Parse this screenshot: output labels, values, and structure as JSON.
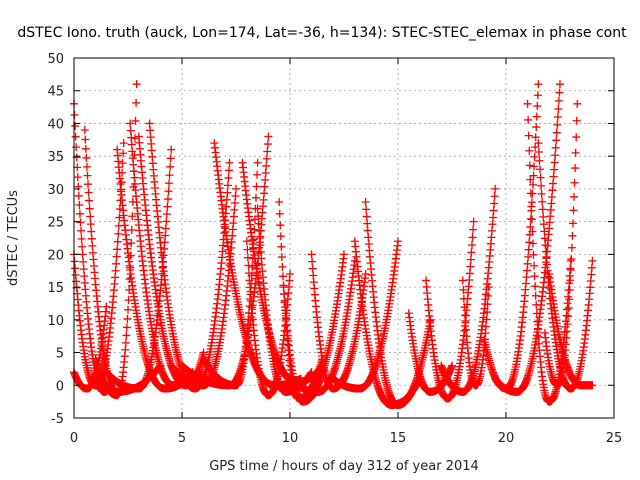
{
  "chart_data": {
    "type": "scatter",
    "title": "dSTEC Iono. truth (auck, Lon=174, Lat=-36, h=134): STEC-STEC_elemax in phase cont",
    "xlabel": "GPS time / hours of day 312 of year 2014",
    "ylabel": "dSTEC  / TECUs",
    "xlim": [
      0,
      25
    ],
    "ylim": [
      -5,
      50
    ],
    "xticks": [
      "0",
      "5",
      "10",
      "15",
      "20",
      "25"
    ],
    "yticks": [
      "-5",
      "0",
      "5",
      "10",
      "15",
      "20",
      "25",
      "30",
      "35",
      "40",
      "45",
      "50"
    ],
    "grid": true,
    "marker": "+",
    "color": "#ff0000",
    "passes": [
      {
        "start": 0.0,
        "end": 1.8,
        "min_t": 1.4,
        "min_v": -1.0,
        "left": 43.0,
        "right": 1.0
      },
      {
        "start": 0.0,
        "end": 2.3,
        "min_t": 1.0,
        "min_v": 0.0,
        "left": 20.0,
        "right": 37.0
      },
      {
        "start": 0.0,
        "end": 1.5,
        "min_t": 0.6,
        "min_v": -0.5,
        "left": 2.0,
        "right": 12.0
      },
      {
        "start": 0.5,
        "end": 4.0,
        "min_t": 2.0,
        "min_v": -1.0,
        "left": 39.0,
        "right": 3.0
      },
      {
        "start": 1.0,
        "end": 2.9,
        "min_t": 2.0,
        "min_v": -1.5,
        "left": 4.0,
        "right": 46.0
      },
      {
        "start": 1.5,
        "end": 4.5,
        "min_t": 3.0,
        "min_v": -0.5,
        "left": 2.0,
        "right": 36.0
      },
      {
        "start": 2.0,
        "end": 5.5,
        "min_t": 4.2,
        "min_v": -0.5,
        "left": 36.0,
        "right": 2.0
      },
      {
        "start": 2.6,
        "end": 5.8,
        "min_t": 4.6,
        "min_v": 0.0,
        "left": 40.0,
        "right": 2.0
      },
      {
        "start": 3.0,
        "end": 6.0,
        "min_t": 5.2,
        "min_v": 0.0,
        "left": 38.0,
        "right": 5.0
      },
      {
        "start": 3.5,
        "end": 7.2,
        "min_t": 5.6,
        "min_v": -0.5,
        "left": 40.0,
        "right": 34.0
      },
      {
        "start": 4.5,
        "end": 7.5,
        "min_t": 6.0,
        "min_v": 0.0,
        "left": 3.0,
        "right": 30.0
      },
      {
        "start": 5.0,
        "end": 9.0,
        "min_t": 7.2,
        "min_v": 0.0,
        "left": 3.0,
        "right": 38.0
      },
      {
        "start": 6.0,
        "end": 8.5,
        "min_t": 7.5,
        "min_v": 0.0,
        "left": 4.0,
        "right": 34.0
      },
      {
        "start": 6.5,
        "end": 10.5,
        "min_t": 9.3,
        "min_v": 0.0,
        "left": 37.0,
        "right": 1.0
      },
      {
        "start": 7.8,
        "end": 11.5,
        "min_t": 10.3,
        "min_v": 0.5,
        "left": 34.0,
        "right": 3.0
      },
      {
        "start": 8.0,
        "end": 10.0,
        "min_t": 9.0,
        "min_v": -1.5,
        "left": 22.0,
        "right": 17.0
      },
      {
        "start": 8.5,
        "end": 11.0,
        "min_t": 9.8,
        "min_v": -1.0,
        "left": 27.0,
        "right": 2.0
      },
      {
        "start": 9.5,
        "end": 11.5,
        "min_t": 10.4,
        "min_v": -2.0,
        "left": 28.0,
        "right": 4.0
      },
      {
        "start": 9.7,
        "end": 12.5,
        "min_t": 10.6,
        "min_v": -2.5,
        "left": 15.0,
        "right": 20.0
      },
      {
        "start": 10.0,
        "end": 13.0,
        "min_t": 11.3,
        "min_v": -1.0,
        "left": 1.0,
        "right": 19.0
      },
      {
        "start": 11.0,
        "end": 13.5,
        "min_t": 12.0,
        "min_v": -0.5,
        "left": 20.0,
        "right": 17.0
      },
      {
        "start": 12.0,
        "end": 15.0,
        "min_t": 13.2,
        "min_v": -0.5,
        "left": 1.0,
        "right": 22.0
      },
      {
        "start": 13.0,
        "end": 16.0,
        "min_t": 14.7,
        "min_v": -3.0,
        "left": 22.0,
        "right": 1.0
      },
      {
        "start": 13.5,
        "end": 16.5,
        "min_t": 15.0,
        "min_v": -3.0,
        "left": 28.0,
        "right": 10.0
      },
      {
        "start": 15.5,
        "end": 17.5,
        "min_t": 16.5,
        "min_v": -1.0,
        "left": 11.0,
        "right": 3.0
      },
      {
        "start": 16.3,
        "end": 18.5,
        "min_t": 17.3,
        "min_v": -2.0,
        "left": 16.0,
        "right": 25.0
      },
      {
        "start": 17.0,
        "end": 19.5,
        "min_t": 18.0,
        "min_v": -1.0,
        "left": 3.0,
        "right": 30.0
      },
      {
        "start": 18.0,
        "end": 19.2,
        "min_t": 18.6,
        "min_v": 0.0,
        "left": 16.0,
        "right": 15.0
      },
      {
        "start": 19.0,
        "end": 21.5,
        "min_t": 20.0,
        "min_v": -0.5,
        "left": 7.0,
        "right": 46.0
      },
      {
        "start": 19.5,
        "end": 22.5,
        "min_t": 20.5,
        "min_v": -1.0,
        "left": 1.0,
        "right": 46.0
      },
      {
        "start": 21.0,
        "end": 23.0,
        "min_t": 22.0,
        "min_v": -2.5,
        "left": 43.0,
        "right": 19.0
      },
      {
        "start": 21.5,
        "end": 24.0,
        "min_t": 23.0,
        "min_v": -0.5,
        "left": 37.0,
        "right": 19.0
      },
      {
        "start": 21.8,
        "end": 23.3,
        "min_t": 22.4,
        "min_v": 0.0,
        "left": 8.0,
        "right": 43.0
      },
      {
        "start": 22.0,
        "end": 24.0,
        "min_t": 23.5,
        "min_v": 0.0,
        "left": 17.0,
        "right": 0.0
      }
    ]
  }
}
